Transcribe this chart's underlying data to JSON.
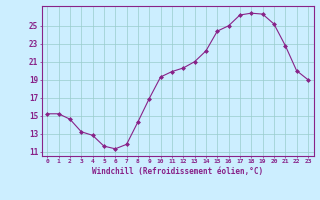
{
  "x": [
    0,
    1,
    2,
    3,
    4,
    5,
    6,
    7,
    8,
    9,
    10,
    11,
    12,
    13,
    14,
    15,
    16,
    17,
    18,
    19,
    20,
    21,
    22,
    23
  ],
  "y": [
    15.2,
    15.2,
    14.6,
    13.2,
    12.8,
    11.6,
    11.3,
    11.8,
    14.3,
    16.9,
    19.3,
    19.9,
    20.3,
    21.0,
    22.2,
    24.4,
    25.0,
    26.2,
    26.4,
    26.3,
    25.2,
    22.8,
    20.0,
    19.0
  ],
  "line_color": "#882288",
  "marker": "D",
  "marker_size": 2.0,
  "bg_color": "#cceeff",
  "grid_color": "#99cccc",
  "axis_color": "#882288",
  "yticks": [
    11,
    13,
    15,
    17,
    19,
    21,
    23,
    25
  ],
  "xlabel": "Windchill (Refroidissement éolien,°C)",
  "ylim": [
    10.5,
    27.2
  ],
  "xlim": [
    -0.5,
    23.5
  ]
}
